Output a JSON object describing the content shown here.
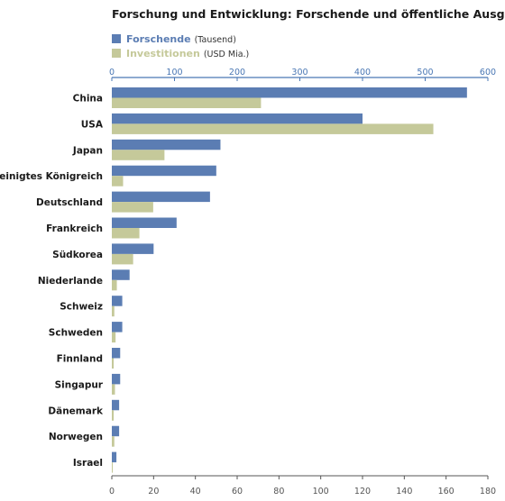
{
  "chart_data": {
    "type": "bar",
    "orientation": "horizontal",
    "title": "Forschung und Entwicklung: Forschende und öffentliche Ausgaben",
    "categories": [
      "China",
      "USA",
      "Japan",
      "Vereinigtes Königreich",
      "Deutschland",
      "Frankreich",
      "Südkorea",
      "Niederlande",
      "Schweiz",
      "Schweden",
      "Finnland",
      "Singapur",
      "Dänemark",
      "Norwegen",
      "Israel"
    ],
    "series": [
      {
        "name": "Forschende",
        "unit": "(Tausend)",
        "axis": "bottom",
        "color": "#5b7db3",
        "values": [
          170,
          120,
          52,
          50,
          47,
          31,
          20,
          8.5,
          5,
          5,
          4,
          4,
          3.5,
          3.5,
          2.2
        ]
      },
      {
        "name": "Investitionen",
        "unit": "(USD Mia.)",
        "axis": "top",
        "color": "#c5c99a",
        "values": [
          238,
          513,
          84,
          18,
          66,
          44,
          34,
          8,
          4,
          6,
          3,
          5,
          3,
          4,
          1.5
        ]
      }
    ],
    "top_axis": {
      "min": 0,
      "max": 600,
      "ticks": [
        0,
        100,
        200,
        300,
        400,
        500,
        600
      ],
      "color": "#4a77b4"
    },
    "bottom_axis": {
      "min": 0,
      "max": 180,
      "ticks": [
        0,
        20,
        40,
        60,
        80,
        100,
        120,
        140,
        160,
        180
      ],
      "color": "#555555"
    },
    "legend_position": "top-left",
    "grid": false
  }
}
